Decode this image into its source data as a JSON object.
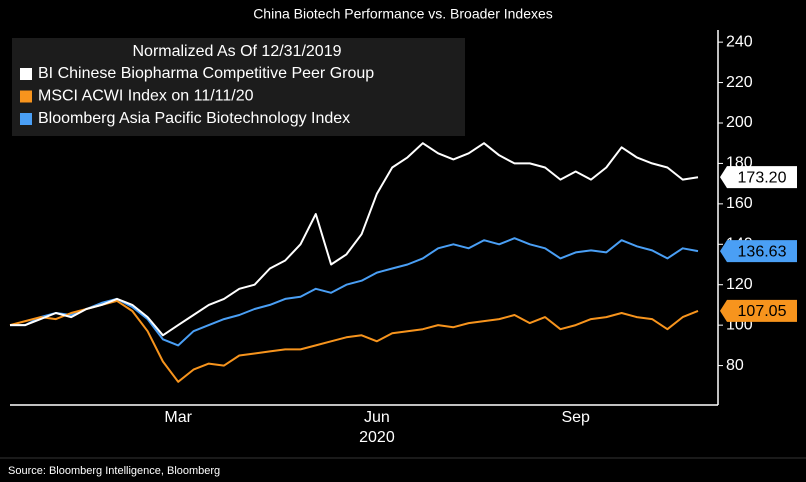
{
  "chart_data": {
    "type": "line",
    "title": "China Biotech Performance vs. Broader Indexes",
    "legend_title": "Normalized As Of 12/31/2019",
    "xlabel": "2020",
    "source": "Source: Bloomberg Intelligence, Bloomberg",
    "legend": "upper left",
    "categories": [
      null,
      null,
      null,
      null,
      null,
      null,
      null,
      null,
      null,
      null,
      null,
      "Mar",
      null,
      null,
      null,
      null,
      null,
      null,
      null,
      null,
      null,
      null,
      null,
      null,
      "Jun",
      null,
      null,
      null,
      null,
      null,
      null,
      null,
      null,
      null,
      null,
      null,
      null,
      "Sep",
      null,
      null,
      null,
      null,
      null,
      null,
      null,
      null
    ],
    "ylim": [
      60.5,
      246
    ],
    "yticks": [
      80,
      100,
      120,
      140,
      160,
      180,
      200,
      220,
      240
    ],
    "series": [
      {
        "name": "BI Chinese Biopharma Competitive Peer Group",
        "color": "#ffffff",
        "values": [
          100,
          100,
          103,
          106,
          104,
          108,
          110,
          113,
          110,
          104,
          95,
          100,
          105,
          110,
          113,
          118,
          120,
          128,
          132,
          140,
          155,
          130,
          135,
          145,
          165,
          178,
          183,
          190,
          185,
          182,
          185,
          190,
          184,
          180,
          180,
          178,
          172,
          176,
          172,
          178,
          188,
          183,
          180,
          178,
          172,
          173.2
        ],
        "value_labels": [
          null,
          null,
          null,
          null,
          null,
          null,
          null,
          null,
          null,
          null,
          null,
          null,
          null,
          null,
          null,
          null,
          null,
          null,
          null,
          null,
          null,
          null,
          null,
          null,
          null,
          null,
          null,
          null,
          null,
          null,
          null,
          null,
          null,
          null,
          null,
          null,
          null,
          null,
          null,
          null,
          null,
          null,
          null,
          null,
          null,
          "173.20"
        ]
      },
      {
        "name": "MSCI ACWI Index on 11/11/20",
        "color": "#f7941d",
        "values": [
          100,
          102,
          104,
          103,
          106,
          108,
          110,
          112,
          107,
          97,
          82,
          72,
          78,
          81,
          80,
          85,
          86,
          87,
          88,
          88,
          90,
          92,
          94,
          95,
          92,
          96,
          97,
          98,
          100,
          99,
          101,
          102,
          103,
          105,
          101,
          104,
          98,
          100,
          103,
          104,
          106,
          104,
          103,
          98,
          104,
          107.05
        ],
        "value_labels": [
          null,
          null,
          null,
          null,
          null,
          null,
          null,
          null,
          null,
          null,
          null,
          null,
          null,
          null,
          null,
          null,
          null,
          null,
          null,
          null,
          null,
          null,
          null,
          null,
          null,
          null,
          null,
          null,
          null,
          null,
          null,
          null,
          null,
          null,
          null,
          null,
          null,
          null,
          null,
          null,
          null,
          null,
          null,
          null,
          null,
          "107.05"
        ]
      },
      {
        "name": "Bloomberg Asia Pacific Biotechnology Index",
        "color": "#4a9ff5",
        "values": [
          100,
          100,
          104,
          106,
          105,
          108,
          111,
          113,
          109,
          103,
          93,
          90,
          97,
          100,
          103,
          105,
          108,
          110,
          113,
          114,
          118,
          116,
          120,
          122,
          126,
          128,
          130,
          133,
          138,
          140,
          138,
          142,
          140,
          143,
          140,
          138,
          133,
          136,
          137,
          136,
          142,
          139,
          137,
          133,
          138,
          136.63
        ],
        "value_labels": [
          null,
          null,
          null,
          null,
          null,
          null,
          null,
          null,
          null,
          null,
          null,
          null,
          null,
          null,
          null,
          null,
          null,
          null,
          null,
          null,
          null,
          null,
          null,
          null,
          null,
          null,
          null,
          null,
          null,
          null,
          null,
          null,
          null,
          null,
          null,
          null,
          null,
          null,
          null,
          null,
          null,
          null,
          null,
          null,
          null,
          "136.63"
        ]
      }
    ]
  }
}
